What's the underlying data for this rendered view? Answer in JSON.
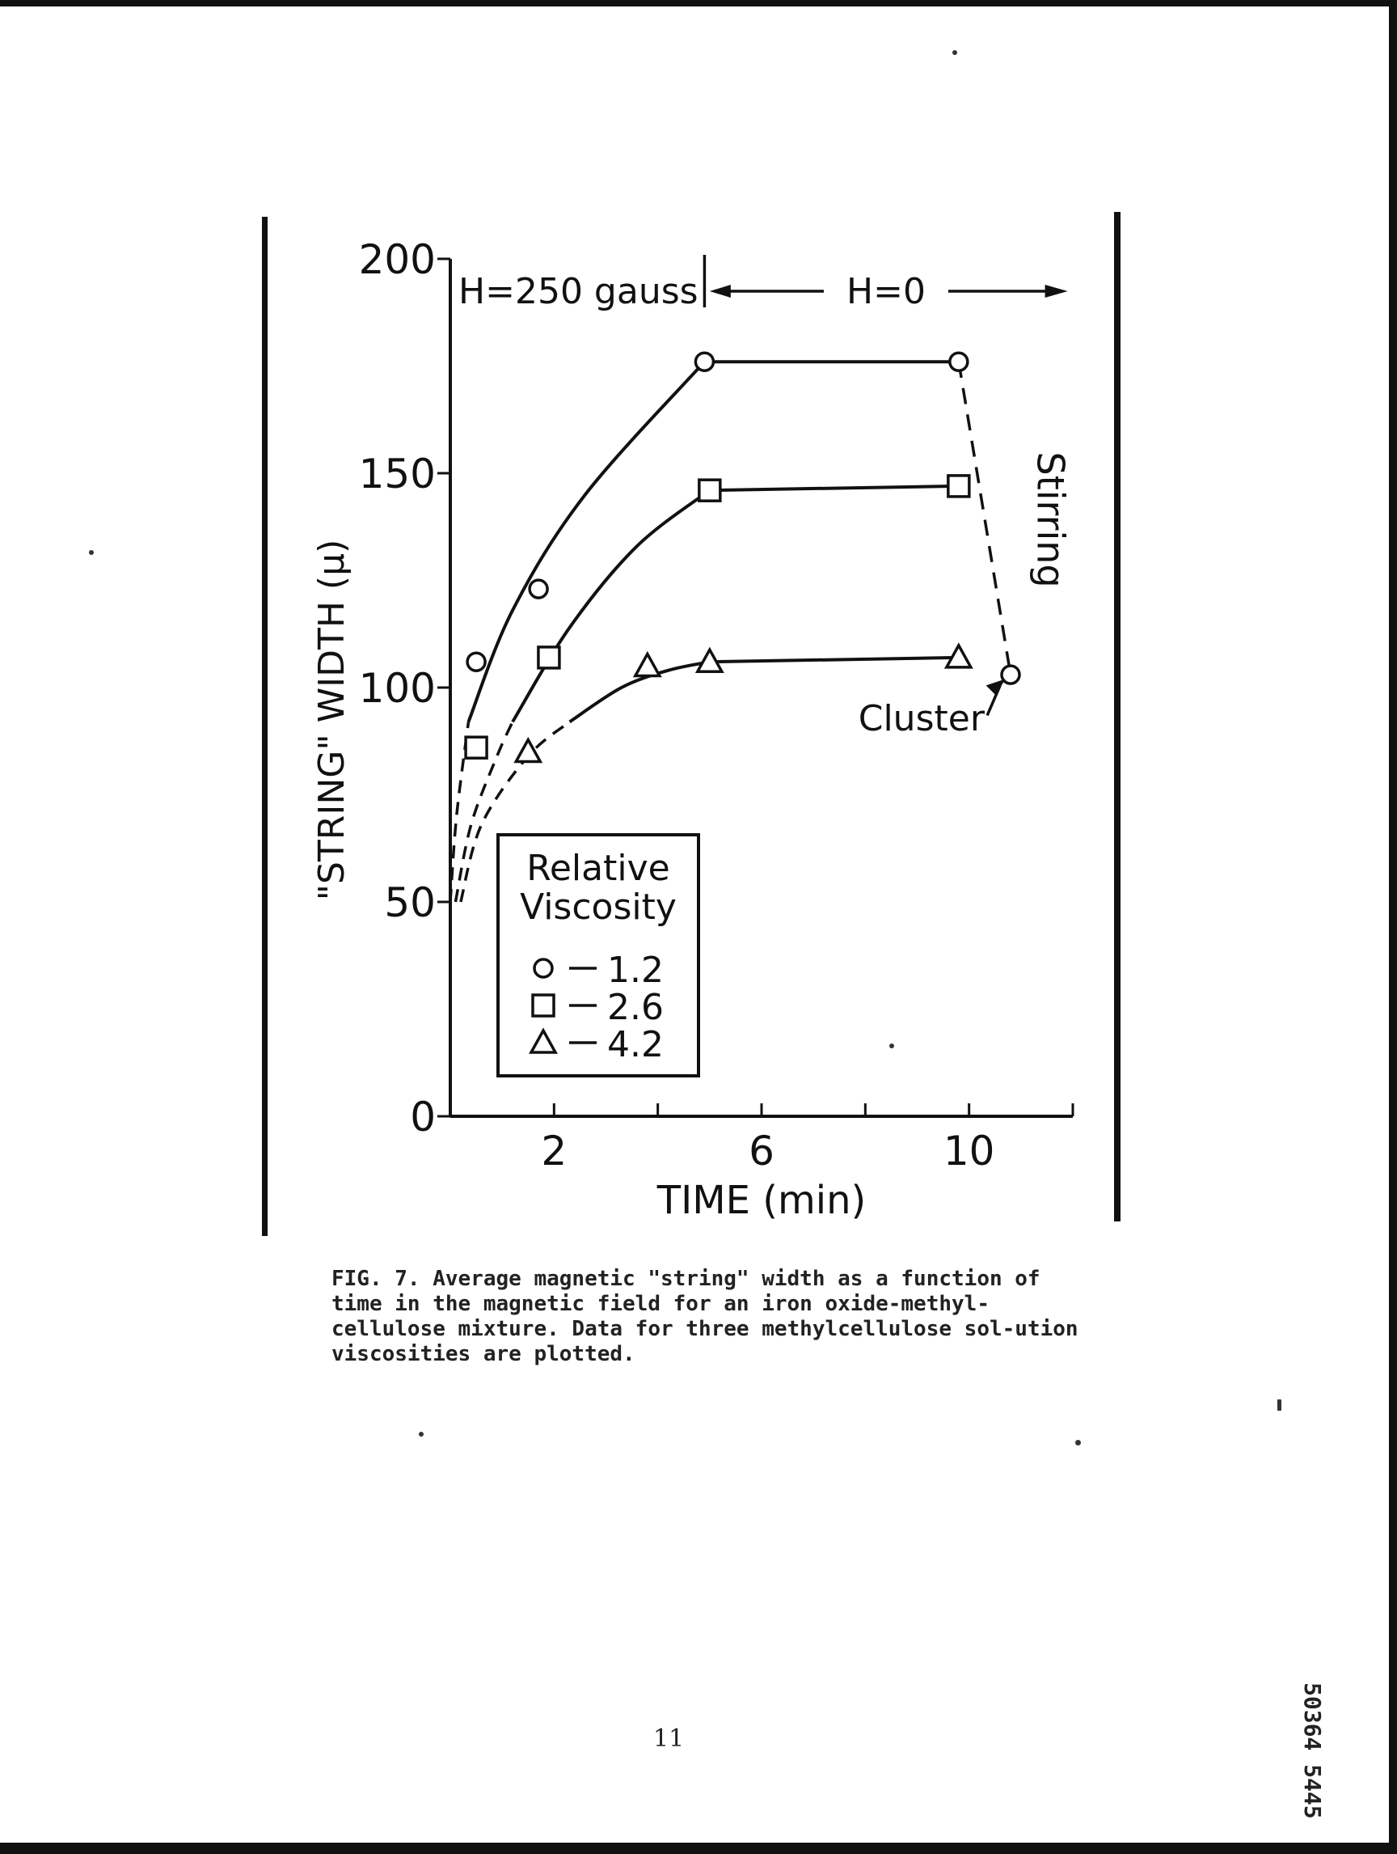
{
  "chart_data": {
    "type": "scatter",
    "xlabel": "TIME (min)",
    "ylabel": "\"STRING\" WIDTH (μ)",
    "xlim": [
      0,
      12
    ],
    "ylim": [
      0,
      200
    ],
    "x_ticks": [
      2,
      6,
      10
    ],
    "x_tick_labels": [
      "2",
      "6",
      "10"
    ],
    "x_minor_ticks": [
      4,
      8,
      12
    ],
    "y_ticks": [
      0,
      50,
      100,
      150,
      200
    ],
    "y_tick_labels": [
      "0",
      "50",
      "100",
      "150",
      "200"
    ],
    "grid": false,
    "legend": {
      "title_lines": [
        "Relative",
        "Viscosity"
      ],
      "entries": [
        {
          "marker": "circle",
          "label": "1.2"
        },
        {
          "marker": "square",
          "label": "2.6"
        },
        {
          "marker": "triangle",
          "label": "4.2"
        }
      ]
    },
    "series": [
      {
        "name": "1.2",
        "marker": "circle",
        "x": [
          0.5,
          1.7,
          4.9,
          9.8,
          10.8
        ],
        "y": [
          106,
          123,
          176,
          176,
          103
        ]
      },
      {
        "name": "2.6",
        "marker": "square",
        "x": [
          0.5,
          1.9,
          5.0,
          9.8
        ],
        "y": [
          86,
          107,
          146,
          147
        ]
      },
      {
        "name": "4.2",
        "marker": "triangle",
        "x": [
          1.5,
          3.8,
          5.0,
          9.8
        ],
        "y": [
          85,
          105,
          106,
          107
        ]
      }
    ],
    "annotations": {
      "field_on": "H=250 gauss",
      "field_off": "H=0",
      "stirring": "Stirring",
      "cluster": "Cluster"
    }
  },
  "caption": "FIG. 7. Average magnetic \"string\" width as a function of time in the magnetic field for an iron oxide-methyl-cellulose mixture.  Data for three methylcellulose sol-ution viscosities are plotted.",
  "page_number": "11",
  "side_code": "50364 5445"
}
